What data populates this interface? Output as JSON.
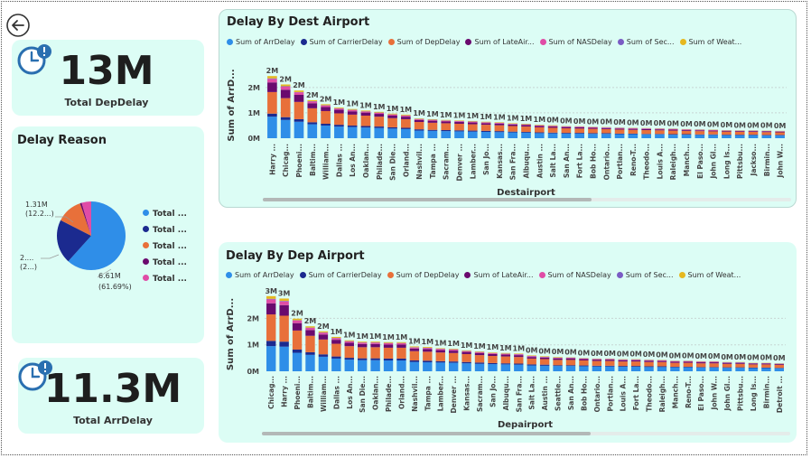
{
  "kpis": {
    "dep_delay": {
      "value": "13M",
      "label": "Total DepDelay"
    },
    "arr_delay": {
      "value": "11.3M",
      "label": "Total ArrDelay"
    }
  },
  "pie": {
    "title": "Delay Reason",
    "labels": {
      "top": "1.31M",
      "top_pct": "(12.2...)",
      "left": "2....",
      "left_pct": "(2...)",
      "right": "6.61M",
      "right_pct": "(61.69%)"
    },
    "legend": [
      "Total ...",
      "Total ...",
      "Total ...",
      "Total ...",
      "Total ..."
    ]
  },
  "series_legend": [
    "Sum of ArrDelay",
    "Sum of CarrierDelay",
    "Sum of DepDelay",
    "Sum of LateAir...",
    "Sum of NASDelay",
    "Sum of Sec...",
    "Sum of Weat..."
  ],
  "colors": {
    "arr": "#2f8ee8",
    "carrier": "#1b2a8f",
    "dep": "#e8703a",
    "late": "#6a0a6e",
    "nas": "#e04ca6",
    "sec": "#7a5cc4",
    "weat": "#e6b81f"
  },
  "chart_data": [
    {
      "type": "bar",
      "title": "Delay By Dest Airport",
      "xlabel": "Destairport",
      "ylabel": "Sum of ArrD...",
      "yticks": [
        "2M",
        "1M",
        "0M"
      ],
      "ylim": [
        0,
        2.6
      ],
      "categories": [
        "Harry ...",
        "Chicag...",
        "Phoeni...",
        "Baltim...",
        "William...",
        "Dallas ...",
        "Los An...",
        "Oaklan...",
        "Philade...",
        "San Die...",
        "Orland...",
        "Nashvil...",
        "Tampa ...",
        "Sacram...",
        "Denver ...",
        "Lamber...",
        "San Jo...",
        "Kansas...",
        "San Fra...",
        "Albuqu...",
        "Austin ...",
        "Salt La...",
        "San An...",
        "Fort La...",
        "Bob Ho...",
        "Ontario...",
        "Portlan...",
        "Reno-T...",
        "Theodo...",
        "Louis A...",
        "Raleigh...",
        "Manch...",
        "El Paso...",
        "John Gl...",
        "Long Is...",
        "Pittsbu...",
        "Jackso...",
        "Birmin...",
        "John W..."
      ],
      "data_labels": [
        "2M",
        "2M",
        "2M",
        "2M",
        "2M",
        "1M",
        "1M",
        "1M",
        "1M",
        "1M",
        "1M",
        "1M",
        "1M",
        "1M",
        "1M",
        "1M",
        "1M",
        "1M",
        "1M",
        "1M",
        "1M",
        "0M",
        "0M",
        "0M",
        "0M",
        "0M",
        "0M",
        "0M",
        "0M",
        "0M",
        "0M",
        "0M",
        "0M",
        "0M",
        "0M",
        "0M",
        "0M",
        "0M",
        "0M"
      ],
      "series": [
        {
          "name": "Sum of ArrDelay",
          "values": [
            0.85,
            0.72,
            0.65,
            0.55,
            0.5,
            0.46,
            0.44,
            0.42,
            0.4,
            0.38,
            0.36,
            0.3,
            0.29,
            0.28,
            0.27,
            0.26,
            0.25,
            0.24,
            0.23,
            0.22,
            0.2,
            0.19,
            0.18,
            0.18,
            0.17,
            0.17,
            0.16,
            0.16,
            0.15,
            0.15,
            0.14,
            0.14,
            0.13,
            0.13,
            0.12,
            0.12,
            0.12,
            0.11,
            0.11
          ]
        },
        {
          "name": "Sum of CarrierDelay",
          "values": [
            0.12,
            0.11,
            0.1,
            0.08,
            0.07,
            0.07,
            0.06,
            0.06,
            0.06,
            0.05,
            0.05,
            0.05,
            0.04,
            0.04,
            0.04,
            0.04,
            0.04,
            0.04,
            0.03,
            0.03,
            0.03,
            0.03,
            0.03,
            0.03,
            0.03,
            0.03,
            0.02,
            0.02,
            0.02,
            0.02,
            0.02,
            0.02,
            0.02,
            0.02,
            0.02,
            0.02,
            0.02,
            0.02,
            0.02
          ]
        },
        {
          "name": "Sum of DepDelay",
          "values": [
            0.85,
            0.75,
            0.68,
            0.55,
            0.5,
            0.45,
            0.43,
            0.41,
            0.39,
            0.36,
            0.34,
            0.29,
            0.28,
            0.27,
            0.26,
            0.25,
            0.24,
            0.23,
            0.22,
            0.21,
            0.2,
            0.19,
            0.18,
            0.17,
            0.17,
            0.16,
            0.16,
            0.15,
            0.15,
            0.14,
            0.14,
            0.13,
            0.13,
            0.12,
            0.12,
            0.11,
            0.11,
            0.11,
            0.1
          ]
        },
        {
          "name": "Sum of LateAir...",
          "values": [
            0.38,
            0.33,
            0.28,
            0.2,
            0.16,
            0.14,
            0.13,
            0.12,
            0.11,
            0.1,
            0.1,
            0.08,
            0.08,
            0.07,
            0.07,
            0.07,
            0.06,
            0.06,
            0.06,
            0.06,
            0.05,
            0.05,
            0.05,
            0.05,
            0.04,
            0.04,
            0.04,
            0.04,
            0.04,
            0.04,
            0.04,
            0.03,
            0.03,
            0.03,
            0.03,
            0.03,
            0.03,
            0.03,
            0.03
          ]
        },
        {
          "name": "Sum of NASDelay",
          "values": [
            0.14,
            0.12,
            0.1,
            0.07,
            0.06,
            0.05,
            0.05,
            0.04,
            0.04,
            0.04,
            0.04,
            0.03,
            0.03,
            0.03,
            0.03,
            0.03,
            0.03,
            0.03,
            0.02,
            0.02,
            0.02,
            0.02,
            0.02,
            0.02,
            0.02,
            0.02,
            0.02,
            0.02,
            0.02,
            0.02,
            0.02,
            0.02,
            0.02,
            0.02,
            0.01,
            0.01,
            0.01,
            0.01,
            0.01
          ]
        },
        {
          "name": "Sum of Sec...",
          "values": [
            0.02,
            0.02,
            0.01,
            0.01,
            0.01,
            0.01,
            0.01,
            0.01,
            0.01,
            0.01,
            0.01,
            0.01,
            0.01,
            0.01,
            0.01,
            0.01,
            0.01,
            0.01,
            0.01,
            0.01,
            0.01,
            0.01,
            0.01,
            0.01,
            0.01,
            0.01,
            0.01,
            0.01,
            0.01,
            0.01,
            0.01,
            0.01,
            0.01,
            0.01,
            0.01,
            0.01,
            0.01,
            0.01,
            0.01
          ]
        },
        {
          "name": "Sum of Weat...",
          "values": [
            0.09,
            0.07,
            0.06,
            0.04,
            0.04,
            0.03,
            0.03,
            0.03,
            0.03,
            0.03,
            0.03,
            0.02,
            0.02,
            0.02,
            0.02,
            0.02,
            0.02,
            0.02,
            0.02,
            0.02,
            0.02,
            0.02,
            0.01,
            0.01,
            0.01,
            0.01,
            0.01,
            0.01,
            0.01,
            0.01,
            0.01,
            0.01,
            0.01,
            0.01,
            0.01,
            0.01,
            0.01,
            0.01,
            0.01
          ]
        }
      ]
    },
    {
      "type": "bar",
      "title": "Delay By Dep Airport",
      "xlabel": "Depairport",
      "ylabel": "Sum of ArrD...",
      "yticks": [
        "2M",
        "1M",
        "0M"
      ],
      "ylim": [
        0,
        2.8
      ],
      "categories": [
        "Chicag...",
        "Harry ...",
        "Phoeni...",
        "Baltim...",
        "William...",
        "Dallas ...",
        "Los An...",
        "San Die...",
        "Oaklan...",
        "Philade...",
        "Orland...",
        "Nashvil...",
        "Tampa ...",
        "Lamber...",
        "Denver ...",
        "Kansas...",
        "Sacram...",
        "San Jo...",
        "Albuqu...",
        "San Fra...",
        "Salt La...",
        "Austin ...",
        "Seattle...",
        "San An...",
        "Bob Ho...",
        "Ontario...",
        "Portlan...",
        "Louis A...",
        "Fort La...",
        "Theodo...",
        "Raleigh...",
        "Manch...",
        "Reno-T...",
        "El Paso...",
        "John W...",
        "John Gl...",
        "Pittsbu...",
        "Long Is...",
        "Birmin...",
        "Detroit ..."
      ],
      "data_labels": [
        "3M",
        "3M",
        "2M",
        "2M",
        "2M",
        "1M",
        "1M",
        "1M",
        "1M",
        "1M",
        "1M",
        "1M",
        "1M",
        "1M",
        "1M",
        "1M",
        "1M",
        "1M",
        "1M",
        "1M",
        "0M",
        "0M",
        "0M",
        "0M",
        "0M",
        "0M",
        "0M",
        "0M",
        "0M",
        "0M",
        "0M",
        "0M",
        "0M",
        "0M",
        "0M",
        "0M",
        "0M",
        "0M",
        "0M",
        "0M"
      ],
      "series": [
        {
          "name": "Sum of ArrDelay",
          "values": [
            0.95,
            0.93,
            0.7,
            0.62,
            0.55,
            0.48,
            0.44,
            0.42,
            0.42,
            0.41,
            0.41,
            0.35,
            0.34,
            0.33,
            0.32,
            0.3,
            0.28,
            0.27,
            0.26,
            0.25,
            0.22,
            0.21,
            0.2,
            0.2,
            0.19,
            0.18,
            0.18,
            0.17,
            0.17,
            0.16,
            0.16,
            0.15,
            0.15,
            0.14,
            0.14,
            0.13,
            0.13,
            0.12,
            0.12,
            0.11
          ]
        },
        {
          "name": "Sum of CarrierDelay",
          "values": [
            0.2,
            0.19,
            0.12,
            0.1,
            0.09,
            0.08,
            0.07,
            0.07,
            0.07,
            0.07,
            0.07,
            0.06,
            0.06,
            0.05,
            0.05,
            0.05,
            0.05,
            0.04,
            0.04,
            0.04,
            0.04,
            0.04,
            0.03,
            0.03,
            0.03,
            0.03,
            0.03,
            0.03,
            0.03,
            0.03,
            0.03,
            0.02,
            0.02,
            0.02,
            0.02,
            0.02,
            0.02,
            0.02,
            0.02,
            0.02
          ]
        },
        {
          "name": "Sum of DepDelay",
          "values": [
            1.0,
            0.98,
            0.72,
            0.62,
            0.56,
            0.48,
            0.44,
            0.42,
            0.42,
            0.41,
            0.41,
            0.35,
            0.34,
            0.33,
            0.32,
            0.3,
            0.28,
            0.27,
            0.26,
            0.25,
            0.22,
            0.21,
            0.2,
            0.2,
            0.19,
            0.18,
            0.18,
            0.17,
            0.17,
            0.16,
            0.16,
            0.15,
            0.15,
            0.14,
            0.14,
            0.13,
            0.13,
            0.12,
            0.12,
            0.11
          ]
        },
        {
          "name": "Sum of LateAir...",
          "values": [
            0.42,
            0.4,
            0.28,
            0.22,
            0.19,
            0.15,
            0.13,
            0.12,
            0.12,
            0.12,
            0.12,
            0.1,
            0.1,
            0.09,
            0.09,
            0.08,
            0.08,
            0.07,
            0.07,
            0.07,
            0.06,
            0.06,
            0.06,
            0.06,
            0.05,
            0.05,
            0.05,
            0.05,
            0.05,
            0.05,
            0.04,
            0.04,
            0.04,
            0.04,
            0.04,
            0.04,
            0.04,
            0.03,
            0.03,
            0.03
          ]
        },
        {
          "name": "Sum of NASDelay",
          "values": [
            0.15,
            0.14,
            0.1,
            0.08,
            0.07,
            0.06,
            0.05,
            0.05,
            0.05,
            0.05,
            0.05,
            0.04,
            0.04,
            0.04,
            0.04,
            0.03,
            0.03,
            0.03,
            0.03,
            0.03,
            0.03,
            0.02,
            0.02,
            0.02,
            0.02,
            0.02,
            0.02,
            0.02,
            0.02,
            0.02,
            0.02,
            0.02,
            0.02,
            0.02,
            0.02,
            0.01,
            0.01,
            0.01,
            0.01,
            0.01
          ]
        },
        {
          "name": "Sum of Sec...",
          "values": [
            0.02,
            0.02,
            0.01,
            0.01,
            0.01,
            0.01,
            0.01,
            0.01,
            0.01,
            0.01,
            0.01,
            0.01,
            0.01,
            0.01,
            0.01,
            0.01,
            0.01,
            0.01,
            0.01,
            0.01,
            0.01,
            0.01,
            0.01,
            0.01,
            0.01,
            0.01,
            0.01,
            0.01,
            0.01,
            0.01,
            0.01,
            0.01,
            0.01,
            0.01,
            0.01,
            0.01,
            0.01,
            0.01,
            0.01,
            0.01
          ]
        },
        {
          "name": "Sum of Weat...",
          "values": [
            0.1,
            0.09,
            0.06,
            0.05,
            0.04,
            0.04,
            0.03,
            0.03,
            0.03,
            0.03,
            0.03,
            0.03,
            0.03,
            0.02,
            0.02,
            0.02,
            0.02,
            0.02,
            0.02,
            0.02,
            0.02,
            0.02,
            0.02,
            0.01,
            0.01,
            0.01,
            0.01,
            0.01,
            0.01,
            0.01,
            0.01,
            0.01,
            0.01,
            0.01,
            0.01,
            0.01,
            0.01,
            0.01,
            0.01,
            0.01
          ]
        }
      ]
    },
    {
      "type": "pie",
      "title": "Delay Reason",
      "slices": [
        {
          "label": "6.61M (61.69%)",
          "value": 61.69,
          "color": "#2f8ee8"
        },
        {
          "label": "2.... (2...)",
          "value": 20.8,
          "color": "#1b2a8f"
        },
        {
          "label": "1.31M (12.2...)",
          "value": 12.2,
          "color": "#e8703a"
        },
        {
          "label": "",
          "value": 0.8,
          "color": "#6a0a6e"
        },
        {
          "label": "",
          "value": 4.5,
          "color": "#e04ca6"
        }
      ]
    }
  ]
}
